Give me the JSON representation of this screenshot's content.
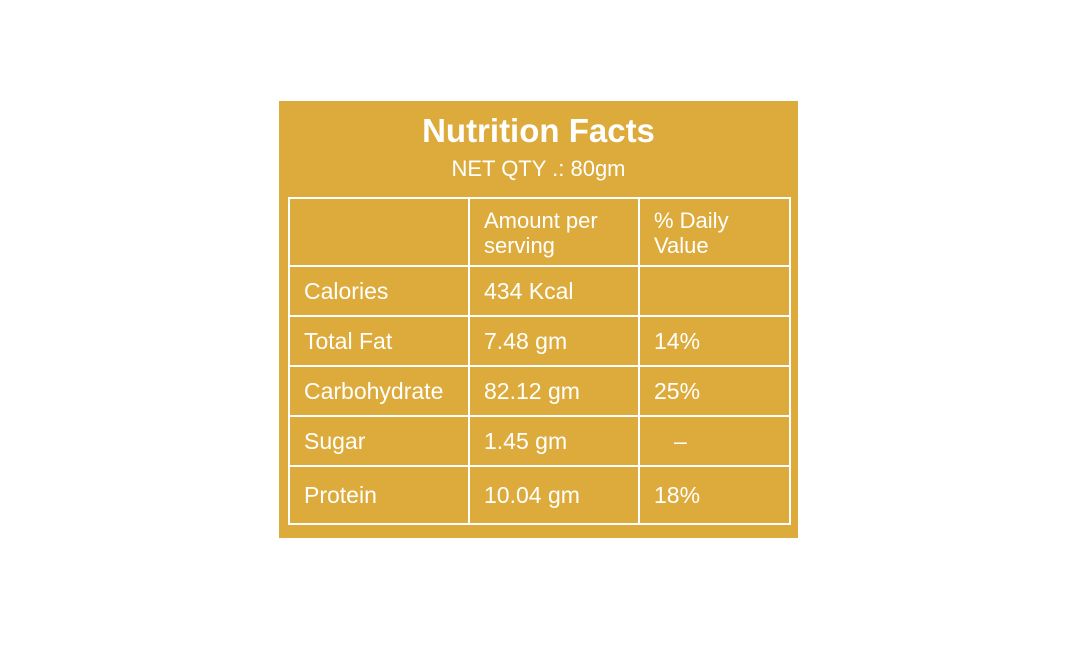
{
  "panel": {
    "title": "Nutrition Facts",
    "net_qty": "NET QTY .: 80gm",
    "background_color": "#dcab3b",
    "text_color": "#ffffff"
  },
  "table": {
    "headers": [
      "",
      "Amount per serving",
      "% Daily Value"
    ],
    "rows": [
      {
        "nutrient": "Calories",
        "amount": "434 Kcal",
        "daily_value": ""
      },
      {
        "nutrient": "Total Fat",
        "amount": "7.48 gm",
        "daily_value": "14%"
      },
      {
        "nutrient": "Carbohydrate",
        "amount": "82.12 gm",
        "daily_value": "25%"
      },
      {
        "nutrient": "Sugar",
        "amount": "1.45 gm",
        "daily_value": "–"
      },
      {
        "nutrient": "Protein",
        "amount": "10.04 gm",
        "daily_value": "18%"
      }
    ]
  }
}
